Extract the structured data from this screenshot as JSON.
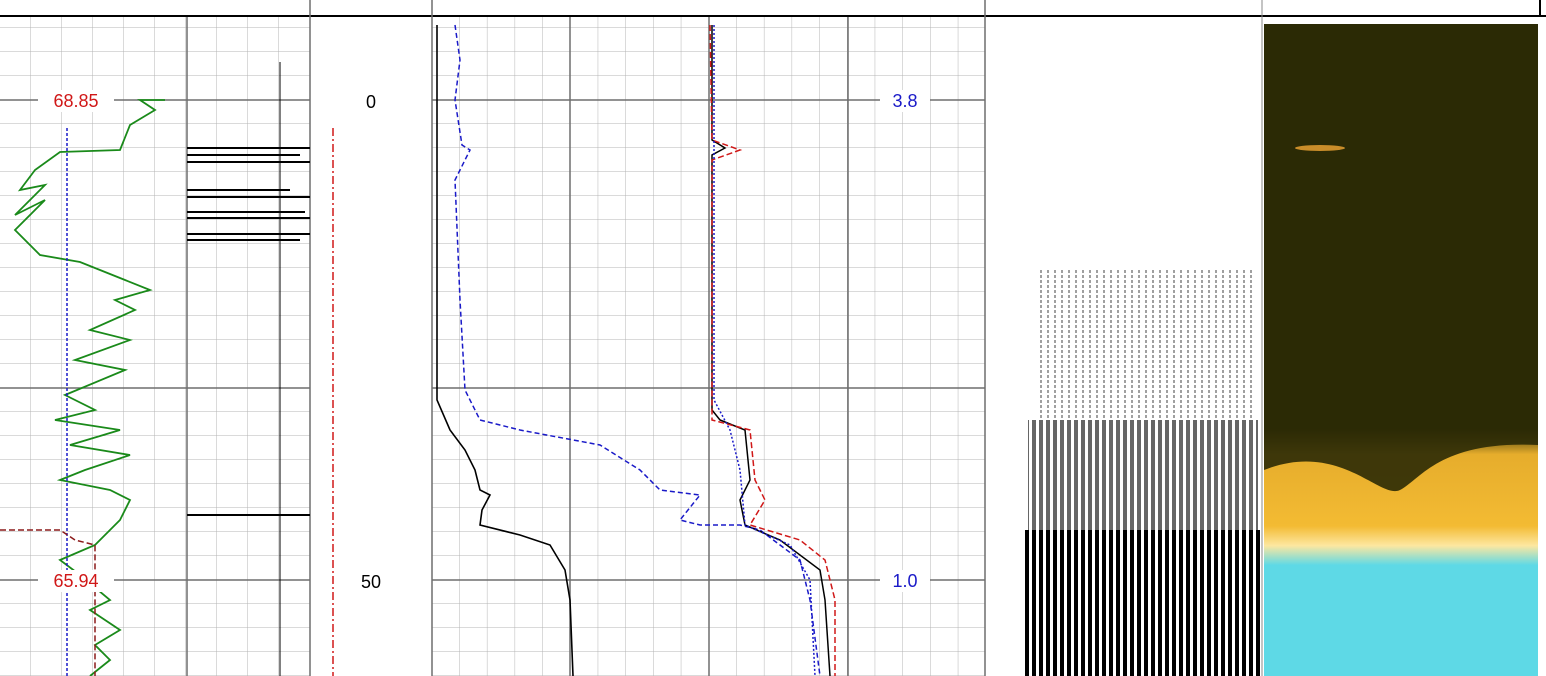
{
  "track1": {
    "scale_labels": [
      "68.85",
      "65.94"
    ]
  },
  "depth_track": {
    "depth_labels": [
      "0",
      "50"
    ]
  },
  "track2": {
    "scale_labels": [
      "3.8",
      "1.0"
    ]
  }
}
